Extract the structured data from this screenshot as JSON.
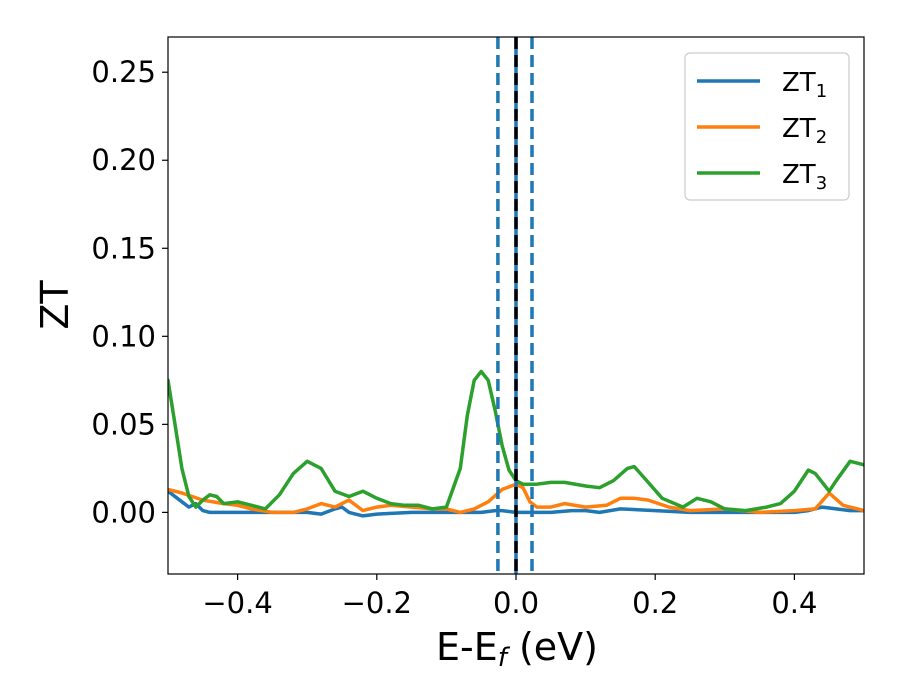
{
  "chart_data": {
    "type": "line",
    "xlabel": "E-E",
    "xlabel_sub": "f",
    "xlabel_unit": " (eV)",
    "ylabel": "ZT",
    "xlim": [
      -0.5,
      0.5
    ],
    "ylim": [
      -0.035,
      0.27
    ],
    "xticks": [
      -0.4,
      -0.2,
      0.0,
      0.2,
      0.4
    ],
    "xtick_labels": [
      "−0.4",
      "−0.2",
      "0.0",
      "0.2",
      "0.4"
    ],
    "yticks": [
      0.0,
      0.05,
      0.1,
      0.15,
      0.2,
      0.25
    ],
    "ytick_labels": [
      "0.00",
      "0.05",
      "0.10",
      "0.15",
      "0.20",
      "0.25"
    ],
    "grid": false,
    "legend_position": "top-right",
    "vlines": [
      {
        "x": -0.026,
        "style": "dashed",
        "color": "#1f77b4"
      },
      {
        "x": 0.0,
        "style": "solid",
        "color": "#1f77b4"
      },
      {
        "x": 0.0,
        "style": "dashed",
        "color": "#000000"
      },
      {
        "x": 0.023,
        "style": "dashed",
        "color": "#1f77b4"
      }
    ],
    "series": [
      {
        "name": "ZT",
        "sub": "1",
        "color": "#1f77b4",
        "x": [
          -0.5,
          -0.48,
          -0.47,
          -0.46,
          -0.45,
          -0.44,
          -0.42,
          -0.4,
          -0.35,
          -0.3,
          -0.28,
          -0.26,
          -0.25,
          -0.24,
          -0.22,
          -0.2,
          -0.15,
          -0.1,
          -0.05,
          -0.03,
          -0.02,
          0.0,
          0.02,
          0.05,
          0.08,
          0.1,
          0.12,
          0.15,
          0.2,
          0.25,
          0.3,
          0.35,
          0.4,
          0.42,
          0.44,
          0.46,
          0.48,
          0.5
        ],
        "y": [
          0.012,
          0.006,
          0.003,
          0.005,
          0.001,
          0.0,
          0.0,
          0.0,
          0.0,
          0.0,
          -0.001,
          0.002,
          0.003,
          0.0,
          -0.002,
          -0.001,
          0.0,
          0.0,
          0.0,
          0.001,
          0.001,
          0.0,
          0.0,
          0.0,
          0.001,
          0.001,
          0.0,
          0.002,
          0.001,
          0.0,
          0.0,
          0.0,
          0.0,
          0.001,
          0.003,
          0.002,
          0.001,
          0.001
        ]
      },
      {
        "name": "ZT",
        "sub": "2",
        "color": "#ff7f0e",
        "x": [
          -0.5,
          -0.48,
          -0.45,
          -0.42,
          -0.4,
          -0.38,
          -0.35,
          -0.32,
          -0.3,
          -0.28,
          -0.26,
          -0.24,
          -0.22,
          -0.2,
          -0.18,
          -0.15,
          -0.12,
          -0.1,
          -0.08,
          -0.06,
          -0.04,
          -0.02,
          0.0,
          0.01,
          0.02,
          0.03,
          0.05,
          0.07,
          0.1,
          0.13,
          0.15,
          0.17,
          0.19,
          0.22,
          0.25,
          0.3,
          0.35,
          0.4,
          0.43,
          0.45,
          0.47,
          0.5
        ],
        "y": [
          0.013,
          0.011,
          0.007,
          0.005,
          0.004,
          0.002,
          0.0,
          0.0,
          0.002,
          0.005,
          0.003,
          0.007,
          0.001,
          0.003,
          0.004,
          0.003,
          0.002,
          0.002,
          0.0,
          0.002,
          0.006,
          0.013,
          0.016,
          0.014,
          0.006,
          0.003,
          0.003,
          0.005,
          0.003,
          0.004,
          0.008,
          0.008,
          0.007,
          0.003,
          0.001,
          0.002,
          0.0,
          0.001,
          0.002,
          0.011,
          0.004,
          0.001
        ]
      },
      {
        "name": "ZT",
        "sub": "3",
        "color": "#2ca02c",
        "x": [
          -0.5,
          -0.49,
          -0.48,
          -0.47,
          -0.46,
          -0.45,
          -0.44,
          -0.43,
          -0.42,
          -0.4,
          -0.38,
          -0.36,
          -0.34,
          -0.32,
          -0.3,
          -0.28,
          -0.26,
          -0.24,
          -0.22,
          -0.2,
          -0.18,
          -0.16,
          -0.14,
          -0.12,
          -0.1,
          -0.08,
          -0.07,
          -0.06,
          -0.05,
          -0.04,
          -0.03,
          -0.02,
          -0.01,
          0.0,
          0.01,
          0.03,
          0.05,
          0.07,
          0.1,
          0.12,
          0.14,
          0.16,
          0.17,
          0.19,
          0.21,
          0.24,
          0.26,
          0.28,
          0.3,
          0.33,
          0.36,
          0.38,
          0.4,
          0.42,
          0.43,
          0.45,
          0.46,
          0.48,
          0.5
        ],
        "y": [
          0.075,
          0.05,
          0.025,
          0.009,
          0.003,
          0.007,
          0.01,
          0.009,
          0.005,
          0.006,
          0.004,
          0.002,
          0.01,
          0.022,
          0.029,
          0.025,
          0.012,
          0.009,
          0.012,
          0.008,
          0.005,
          0.004,
          0.004,
          0.002,
          0.003,
          0.025,
          0.055,
          0.075,
          0.08,
          0.075,
          0.058,
          0.038,
          0.024,
          0.018,
          0.016,
          0.016,
          0.017,
          0.017,
          0.015,
          0.014,
          0.018,
          0.025,
          0.026,
          0.017,
          0.008,
          0.003,
          0.008,
          0.006,
          0.002,
          0.001,
          0.003,
          0.005,
          0.012,
          0.024,
          0.022,
          0.012,
          0.018,
          0.029,
          0.027
        ]
      }
    ]
  }
}
